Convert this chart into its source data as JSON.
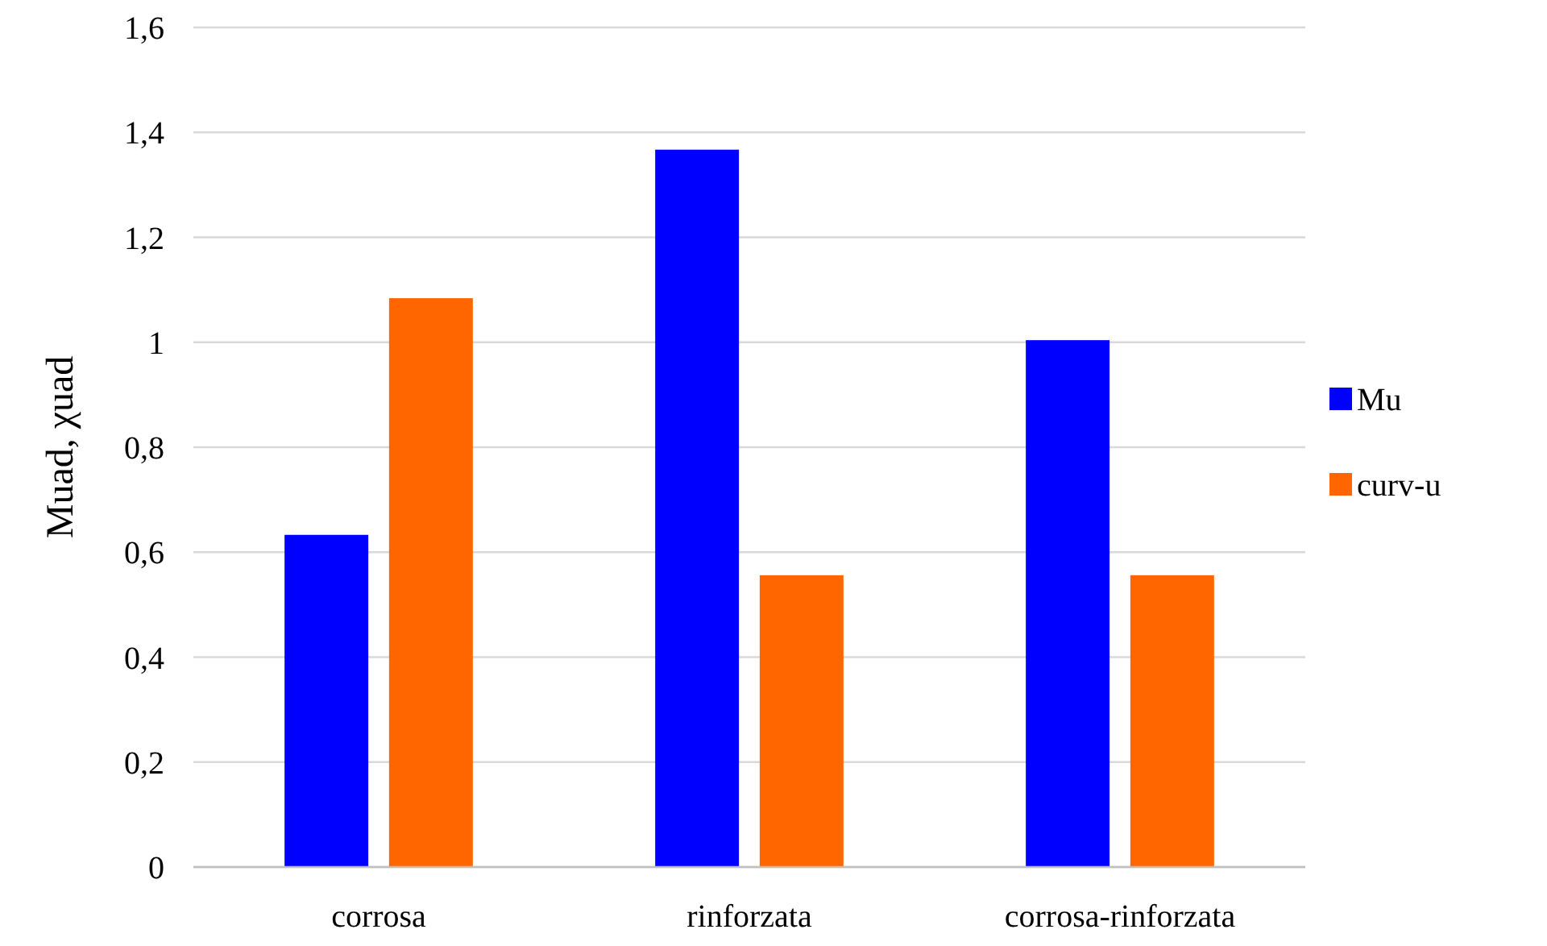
{
  "chart_data": {
    "type": "bar",
    "ylabel": "Muad, χuad",
    "categories": [
      "corrosa",
      "rinforzata",
      "corrosa-rinforzata"
    ],
    "series": [
      {
        "name": "Mu",
        "color": "#0000ff",
        "values": [
          0.633,
          1.367,
          1.004
        ]
      },
      {
        "name": "curv-u",
        "color": "#ff6600",
        "values": [
          1.084,
          0.556,
          0.556
        ]
      }
    ],
    "ylim": [
      0,
      1.6
    ],
    "yticks": [
      {
        "value": 0,
        "label": "0"
      },
      {
        "value": 0.2,
        "label": "0,2"
      },
      {
        "value": 0.4,
        "label": "0,4"
      },
      {
        "value": 0.6,
        "label": "0,6"
      },
      {
        "value": 0.8,
        "label": "0,8"
      },
      {
        "value": 1,
        "label": "1"
      },
      {
        "value": 1.2,
        "label": "1,2"
      },
      {
        "value": 1.4,
        "label": "1,4"
      },
      {
        "value": 1.6,
        "label": "1,6"
      }
    ],
    "grid": "y",
    "legend": "right"
  }
}
